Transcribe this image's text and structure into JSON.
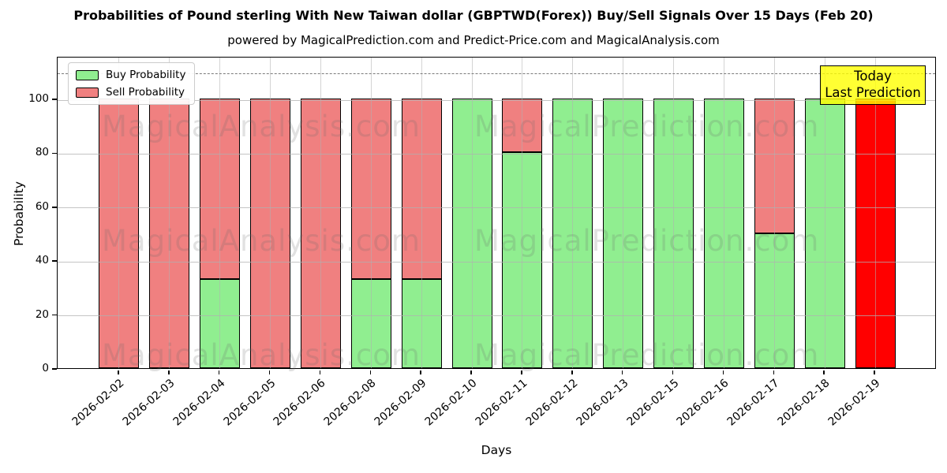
{
  "header": {
    "title": "Probabilities of Pound sterling With New Taiwan dollar (GBPTWD(Forex)) Buy/Sell Signals Over 15 Days (Feb 20)",
    "subtitle": "powered by MagicalPrediction.com and Predict-Price.com and MagicalAnalysis.com"
  },
  "legend": {
    "items": [
      {
        "label": "Buy Probability",
        "color": "#90EE90"
      },
      {
        "label": "Sell Probability",
        "color": "#F08080"
      }
    ]
  },
  "annotation": {
    "line1": "Today",
    "line2": "Last Prediction",
    "bg_color": "#FFFF00"
  },
  "watermarks": {
    "left_text": "MagicalAnalysis.com",
    "right_text": "MagicalPrediction.com"
  },
  "chart_data": {
    "type": "bar",
    "stacked": true,
    "title": "Probabilities of Pound sterling With New Taiwan dollar (GBPTWD(Forex)) Buy/Sell Signals Over 15 Days (Feb 20)",
    "xlabel": "Days",
    "ylabel": "Probability",
    "categories": [
      "2026-02-02",
      "2026-02-03",
      "2026-02-04",
      "2026-02-05",
      "2026-02-06",
      "2026-02-08",
      "2026-02-09",
      "2026-02-10",
      "2026-02-11",
      "2026-02-12",
      "2026-02-13",
      "2026-02-15",
      "2026-02-16",
      "2026-02-17",
      "2026-02-18",
      "2026-02-19"
    ],
    "series": [
      {
        "name": "Buy Probability",
        "color": "#90EE90",
        "values": [
          0,
          0,
          33,
          0,
          0,
          33,
          33,
          100,
          80,
          100,
          100,
          100,
          100,
          50,
          100,
          0
        ]
      },
      {
        "name": "Sell Probability",
        "color": "#F08080",
        "values": [
          100,
          100,
          67,
          100,
          100,
          67,
          67,
          0,
          20,
          0,
          0,
          0,
          0,
          50,
          0,
          100
        ]
      }
    ],
    "today_index": 15,
    "today_bar_color": "#FF0000",
    "yticks": [
      0,
      20,
      40,
      60,
      80,
      100
    ],
    "ylim": [
      0,
      115.8
    ],
    "dashed_line_y": 110,
    "grid": true,
    "legend_position": "upper left",
    "bar_edge_color": "#000000"
  }
}
